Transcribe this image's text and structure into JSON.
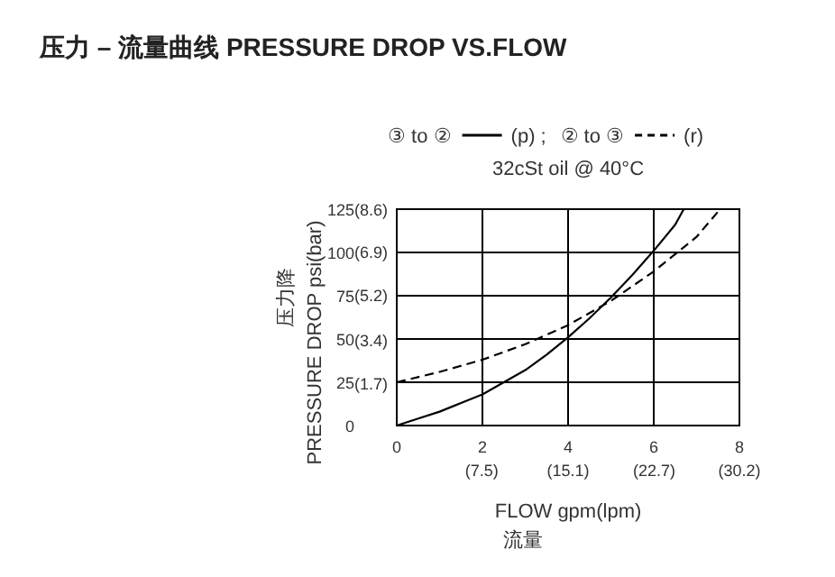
{
  "chart_data": {
    "type": "line",
    "title": "压力 – 流量曲线 PRESSURE DROP VS.FLOW",
    "subtitle": "32cSt oil @ 40°C",
    "xlabel": "FLOW   gpm(lpm)\n流量",
    "ylabel": "压力降\nPRESSURE DROP   psi(bar)",
    "annotations": [
      "③ to ②",
      ";",
      "② to ③"
    ],
    "xlim": [
      0,
      8
    ],
    "ylim": [
      0,
      125
    ],
    "xticks": [
      0,
      2,
      4,
      6,
      8
    ],
    "yticks": [
      0,
      25,
      50,
      75,
      100,
      125
    ],
    "x2lim": [
      0,
      30.2
    ],
    "x2ticks": [
      {
        "value": 7.5,
        "label": "(7.5)"
      },
      {
        "value": 15.1,
        "label": "(15.1)"
      },
      {
        "value": 22.7,
        "label": "(22.7)"
      },
      {
        "value": 30.2,
        "label": "(30.2)"
      }
    ],
    "y2lim": [
      0,
      8.6
    ],
    "y2ticks": [
      {
        "value": 1.7,
        "label": "(1.7)"
      },
      {
        "value": 3.4,
        "label": "(3.4)"
      },
      {
        "value": 5.2,
        "label": "(5.2)"
      },
      {
        "value": 6.9,
        "label": "(6.9)"
      },
      {
        "value": 8.6,
        "label": "(8.6)"
      }
    ],
    "grid": true,
    "legend": "top",
    "marker": "none",
    "series": [
      {
        "name": "(p)",
        "color": "#000000",
        "line_style": "solid",
        "x": [
          0,
          0.5,
          1,
          1.5,
          2,
          2.5,
          3,
          3.5,
          4,
          4.5,
          5,
          5.5,
          6,
          6.5,
          6.7
        ],
        "values": [
          0,
          4,
          8,
          13,
          18,
          25,
          32,
          41,
          51,
          62,
          74,
          87,
          101,
          116,
          125
        ]
      },
      {
        "name": "(r)",
        "color": "#000000",
        "line_style": "dashed",
        "x": [
          0,
          1,
          2,
          3,
          4,
          5,
          6,
          7,
          7.55
        ],
        "values": [
          25,
          31,
          38,
          47,
          58,
          72,
          89,
          109,
          125
        ]
      }
    ]
  }
}
